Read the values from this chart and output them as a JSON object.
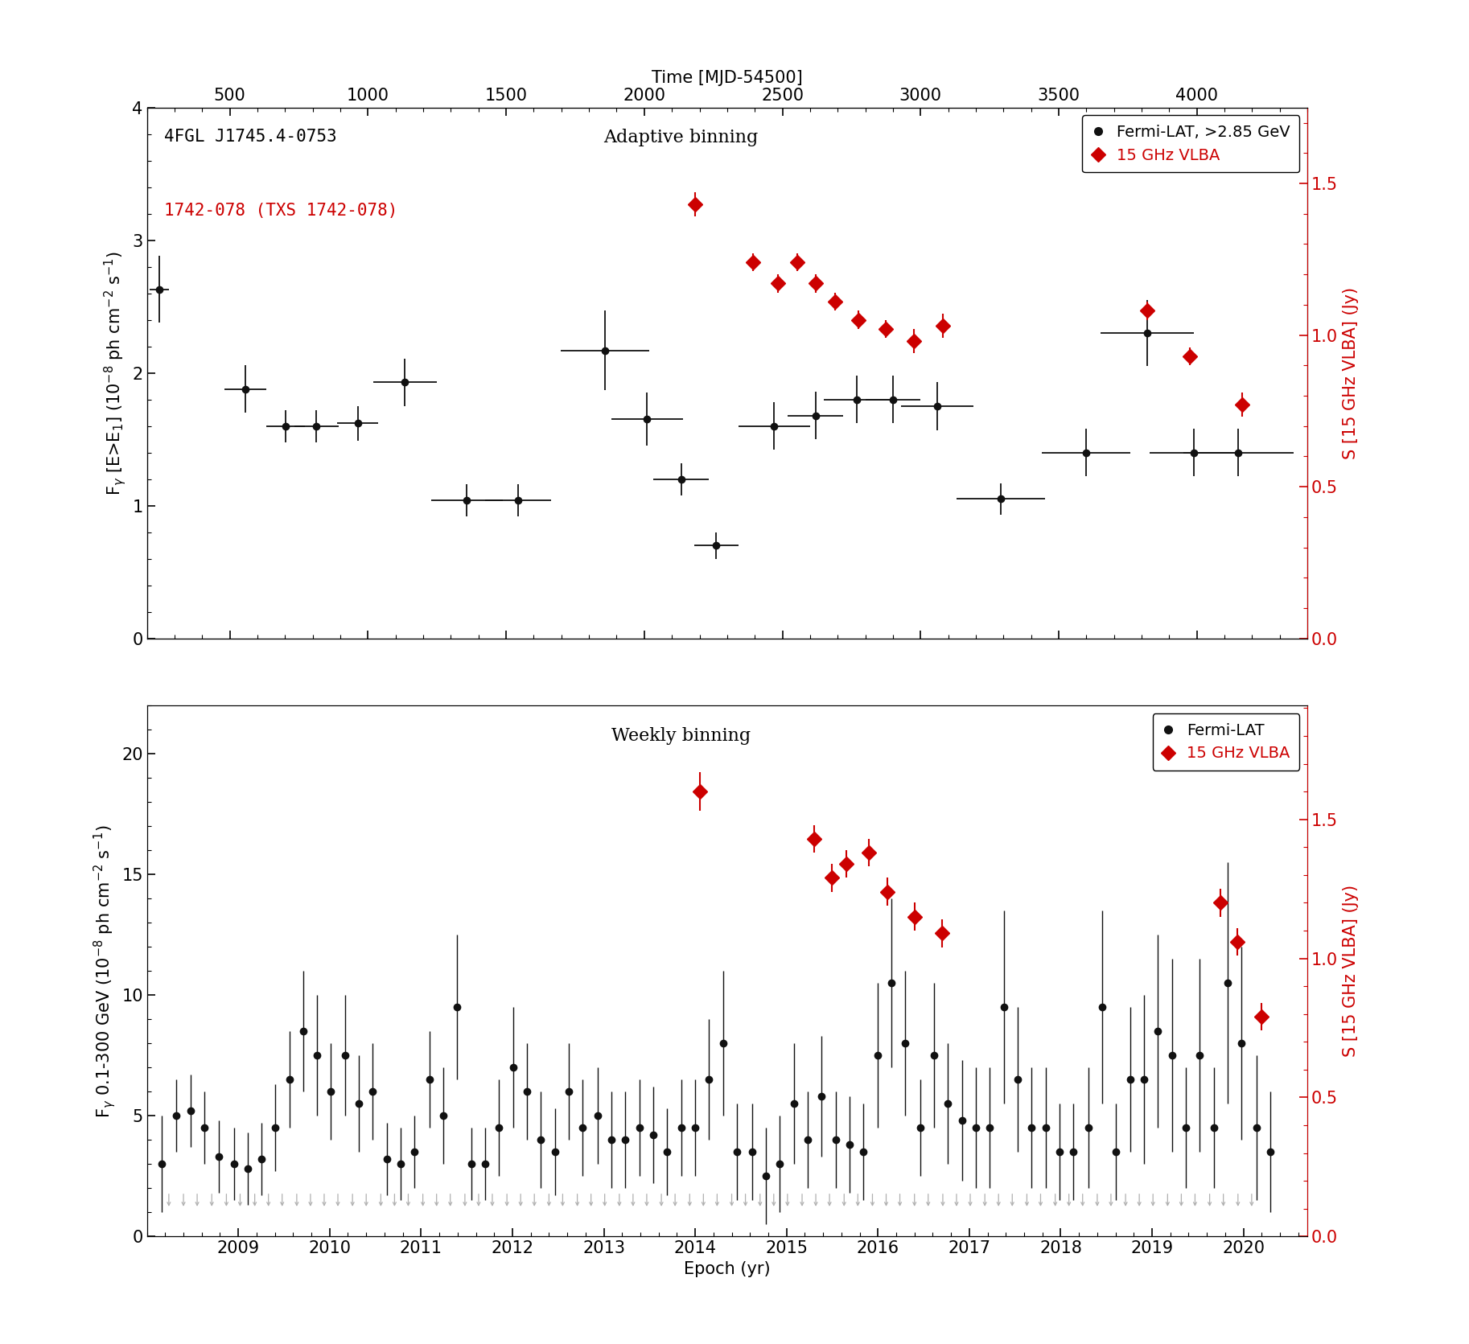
{
  "top_panel": {
    "title": "Adaptive binning",
    "ylabel": "F$_{\\gamma}$ [E>E$_1$] (10$^{-8}$ ph cm$^{-2}$ s$^{-1}$)",
    "ylim": [
      0,
      4
    ],
    "yticks": [
      0,
      1,
      2,
      3,
      4
    ],
    "top_xlabel": "Time [MJD-54500]",
    "mjd_xlim": [
      200,
      4400
    ],
    "top_xticks": [
      500,
      1000,
      1500,
      2000,
      2500,
      3000,
      3500,
      4000
    ],
    "right_ylabel": "S [15 GHz VLBA] (Jy)",
    "right_ylim": [
      0,
      1.75
    ],
    "right_yticks": [
      0.0,
      0.5,
      1.0,
      1.5
    ],
    "label1": "4FGL J1745.4-0753",
    "label2": "1742-078 (TXS 1742-078)",
    "legend_label1": "Fermi-LAT, >2.85 GeV",
    "legend_label2": "15 GHz VLBA",
    "fermi_x": [
      246,
      556,
      701,
      813,
      963,
      1133,
      1358,
      1543,
      1858,
      2010,
      2133,
      2260,
      2470,
      2620,
      2770,
      2900,
      3060,
      3290,
      3600,
      3820,
      3990,
      4150
    ],
    "fermi_y": [
      2.63,
      1.88,
      1.6,
      1.6,
      1.62,
      1.93,
      1.04,
      1.04,
      2.17,
      1.65,
      1.2,
      0.7,
      1.6,
      1.68,
      1.8,
      1.8,
      1.75,
      1.05,
      1.4,
      2.3,
      1.4,
      1.4
    ],
    "fermi_xerr_lo": [
      35,
      75,
      70,
      80,
      75,
      115,
      130,
      120,
      160,
      130,
      100,
      80,
      130,
      100,
      120,
      100,
      130,
      160,
      160,
      170,
      160,
      200
    ],
    "fermi_xerr_hi": [
      35,
      75,
      70,
      80,
      75,
      115,
      130,
      120,
      160,
      130,
      100,
      80,
      130,
      100,
      120,
      100,
      130,
      160,
      160,
      170,
      160,
      200
    ],
    "fermi_yerr_lo": [
      0.25,
      0.18,
      0.12,
      0.12,
      0.13,
      0.18,
      0.12,
      0.12,
      0.3,
      0.2,
      0.12,
      0.1,
      0.18,
      0.18,
      0.18,
      0.18,
      0.18,
      0.12,
      0.18,
      0.25,
      0.18,
      0.18
    ],
    "fermi_yerr_hi": [
      0.25,
      0.18,
      0.12,
      0.12,
      0.13,
      0.18,
      0.12,
      0.12,
      0.3,
      0.2,
      0.12,
      0.1,
      0.18,
      0.18,
      0.18,
      0.18,
      0.18,
      0.12,
      0.18,
      0.25,
      0.18,
      0.18
    ],
    "vlba_mjd": [
      2185,
      2395,
      2485,
      2555,
      2620,
      2690,
      2775,
      2875,
      2975,
      3080,
      3820,
      3975,
      4165
    ],
    "vlba_jy": [
      1.43,
      1.24,
      1.17,
      1.24,
      1.17,
      1.11,
      1.05,
      1.02,
      0.98,
      1.03,
      1.08,
      0.93,
      0.77
    ],
    "vlba_jerr_lo": [
      0.04,
      0.03,
      0.03,
      0.03,
      0.03,
      0.03,
      0.03,
      0.03,
      0.04,
      0.04,
      0.03,
      0.03,
      0.04
    ],
    "vlba_jerr_hi": [
      0.04,
      0.03,
      0.03,
      0.03,
      0.03,
      0.03,
      0.03,
      0.03,
      0.04,
      0.04,
      0.03,
      0.03,
      0.04
    ]
  },
  "bottom_panel": {
    "title": "Weekly binning",
    "ylabel": "F$_{\\gamma}$ 0.1-300 GeV (10$^{-8}$ ph cm$^{-2}$ s$^{-1}$)",
    "xlabel": "Epoch (yr)",
    "ylim": [
      0,
      22
    ],
    "yticks": [
      0,
      5,
      10,
      15,
      20
    ],
    "xlim": [
      2008.0,
      2020.7
    ],
    "right_ylabel": "S [15 GHz VLBA] (Jy)",
    "right_ylim": [
      0,
      1.909
    ],
    "right_yticks": [
      0.0,
      0.5,
      1.0,
      1.5
    ],
    "legend_label1": "Fermi-LAT",
    "legend_label2": "15 GHz VLBA",
    "fermi_det_x": [
      2008.16,
      2008.32,
      2008.48,
      2008.63,
      2008.79,
      2008.95,
      2009.1,
      2009.25,
      2009.4,
      2009.56,
      2009.71,
      2009.86,
      2010.01,
      2010.17,
      2010.32,
      2010.47,
      2010.63,
      2010.78,
      2010.93,
      2011.09,
      2011.24,
      2011.39,
      2011.55,
      2011.7,
      2011.85,
      2012.01,
      2012.16,
      2012.31,
      2012.47,
      2012.62,
      2012.77,
      2012.93,
      2013.08,
      2013.23,
      2013.39,
      2013.54,
      2013.69,
      2013.85,
      2014.0,
      2014.15,
      2014.31,
      2014.46,
      2014.62,
      2014.77,
      2014.92,
      2015.08,
      2015.23,
      2015.38,
      2015.54,
      2015.69,
      2015.84,
      2016.0,
      2016.15,
      2016.3,
      2016.46,
      2016.61,
      2016.76,
      2016.92,
      2017.07,
      2017.22,
      2017.38,
      2017.53,
      2017.68,
      2017.84,
      2017.99,
      2018.14,
      2018.3,
      2018.45,
      2018.6,
      2018.76,
      2018.91,
      2019.06,
      2019.22,
      2019.37,
      2019.52,
      2019.68,
      2019.83,
      2019.98,
      2020.14,
      2020.29
    ],
    "fermi_det_y": [
      3.0,
      5.0,
      5.2,
      4.5,
      3.3,
      3.0,
      2.8,
      3.2,
      4.5,
      6.5,
      8.5,
      7.5,
      6.0,
      7.5,
      5.5,
      6.0,
      3.2,
      3.0,
      3.5,
      6.5,
      5.0,
      9.5,
      3.0,
      3.0,
      4.5,
      7.0,
      6.0,
      4.0,
      3.5,
      6.0,
      4.5,
      5.0,
      4.0,
      4.0,
      4.5,
      4.2,
      3.5,
      4.5,
      4.5,
      6.5,
      8.0,
      3.5,
      3.5,
      2.5,
      3.0,
      5.5,
      4.0,
      5.8,
      4.0,
      3.8,
      3.5,
      7.5,
      10.5,
      8.0,
      4.5,
      7.5,
      5.5,
      4.8,
      4.5,
      4.5,
      9.5,
      6.5,
      4.5,
      4.5,
      3.5,
      3.5,
      4.5,
      9.5,
      3.5,
      6.5,
      6.5,
      8.5,
      7.5,
      4.5,
      7.5,
      4.5,
      10.5,
      8.0,
      4.5,
      3.5
    ],
    "fermi_det_yerr": [
      2.0,
      1.5,
      1.5,
      1.5,
      1.5,
      1.5,
      1.5,
      1.5,
      1.8,
      2.0,
      2.5,
      2.5,
      2.0,
      2.5,
      2.0,
      2.0,
      1.5,
      1.5,
      1.5,
      2.0,
      2.0,
      3.0,
      1.5,
      1.5,
      2.0,
      2.5,
      2.0,
      2.0,
      1.8,
      2.0,
      2.0,
      2.0,
      2.0,
      2.0,
      2.0,
      2.0,
      1.8,
      2.0,
      2.0,
      2.5,
      3.0,
      2.0,
      2.0,
      2.0,
      2.0,
      2.5,
      2.0,
      2.5,
      2.0,
      2.0,
      2.0,
      3.0,
      3.5,
      3.0,
      2.0,
      3.0,
      2.5,
      2.5,
      2.5,
      2.5,
      4.0,
      3.0,
      2.5,
      2.5,
      2.0,
      2.0,
      2.5,
      4.0,
      2.0,
      3.0,
      3.5,
      4.0,
      4.0,
      2.5,
      4.0,
      2.5,
      5.0,
      4.0,
      3.0,
      2.5
    ],
    "ul_x": [
      2008.24,
      2008.4,
      2008.55,
      2008.71,
      2008.87,
      2009.02,
      2009.18,
      2009.33,
      2009.48,
      2009.64,
      2009.79,
      2009.94,
      2010.09,
      2010.25,
      2010.4,
      2010.56,
      2010.71,
      2010.86,
      2011.02,
      2011.17,
      2011.32,
      2011.48,
      2011.63,
      2011.78,
      2011.94,
      2012.09,
      2012.24,
      2012.4,
      2012.55,
      2012.71,
      2012.86,
      2013.01,
      2013.17,
      2013.32,
      2013.47,
      2013.63,
      2013.78,
      2013.94,
      2014.09,
      2014.24,
      2014.4,
      2014.55,
      2014.71,
      2014.86,
      2015.01,
      2015.17,
      2015.32,
      2015.47,
      2015.63,
      2015.78,
      2015.94,
      2016.09,
      2016.24,
      2016.4,
      2016.55,
      2016.71,
      2016.86,
      2017.01,
      2017.17,
      2017.32,
      2017.47,
      2017.63,
      2017.78,
      2017.94,
      2018.09,
      2018.24,
      2018.4,
      2018.55,
      2018.71,
      2018.86,
      2019.01,
      2019.17,
      2019.32,
      2019.47,
      2019.63,
      2019.78,
      2019.94,
      2020.09
    ],
    "ul_y": [
      1.8,
      1.8,
      1.8,
      1.8,
      1.8,
      1.8,
      1.8,
      1.8,
      1.8,
      1.8,
      1.8,
      1.8,
      1.8,
      1.8,
      1.8,
      1.8,
      1.8,
      1.8,
      1.8,
      1.8,
      1.8,
      1.8,
      1.8,
      1.8,
      1.8,
      1.8,
      1.8,
      1.8,
      1.8,
      1.8,
      1.8,
      1.8,
      1.8,
      1.8,
      1.8,
      1.8,
      1.8,
      1.8,
      1.8,
      1.8,
      1.8,
      1.8,
      1.8,
      1.8,
      1.8,
      1.8,
      1.8,
      1.8,
      1.8,
      1.8,
      1.8,
      1.8,
      1.8,
      1.8,
      1.8,
      1.8,
      1.8,
      1.8,
      1.8,
      1.8,
      1.8,
      1.8,
      1.8,
      1.8,
      1.8,
      1.8,
      1.8,
      1.8,
      1.8,
      1.8,
      1.8,
      1.8,
      1.8,
      1.8,
      1.8,
      1.8,
      1.8,
      1.8
    ],
    "vlba_x": [
      2014.05,
      2015.3,
      2015.5,
      2015.65,
      2015.9,
      2016.1,
      2016.4,
      2016.7,
      2019.75,
      2019.93,
      2020.2
    ],
    "vlba_jy": [
      1.6,
      1.43,
      1.29,
      1.34,
      1.38,
      1.24,
      1.15,
      1.09,
      1.2,
      1.06,
      0.79
    ],
    "vlba_jerr_lo": [
      0.07,
      0.05,
      0.05,
      0.05,
      0.05,
      0.05,
      0.05,
      0.05,
      0.05,
      0.05,
      0.05
    ],
    "vlba_jerr_hi": [
      0.07,
      0.05,
      0.05,
      0.05,
      0.05,
      0.05,
      0.05,
      0.05,
      0.05,
      0.05,
      0.05
    ]
  },
  "fermi_color": "#111111",
  "vlba_color": "#cc0000",
  "ul_color": "#b0b0b0"
}
